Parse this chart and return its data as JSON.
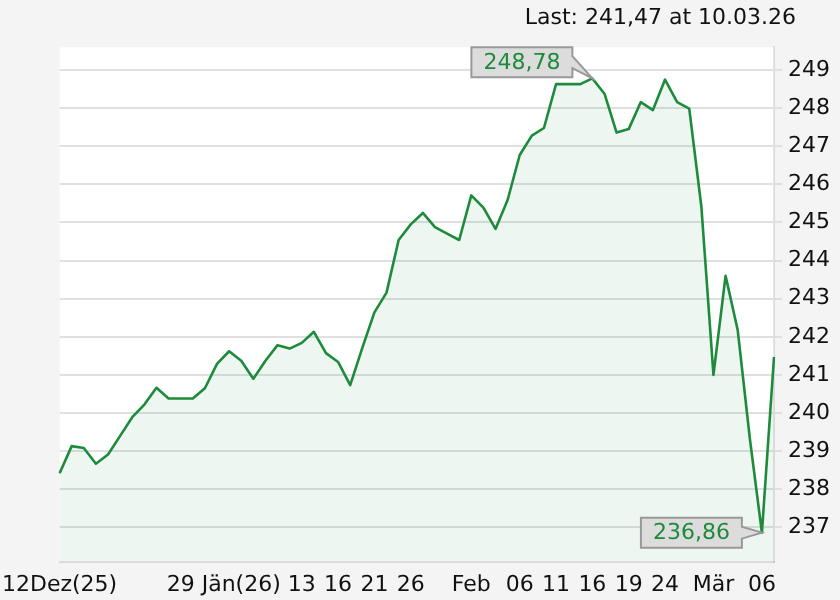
{
  "chart_data": {
    "type": "area",
    "title": "Last: 241,47 at 10.03.26",
    "categories": [
      "12Dez(25)",
      null,
      null,
      null,
      null,
      null,
      null,
      null,
      null,
      null,
      "29",
      null,
      null,
      null,
      null,
      "Jän(26)",
      null,
      null,
      null,
      null,
      "13",
      null,
      null,
      "16",
      null,
      null,
      "21",
      null,
      null,
      "26",
      null,
      null,
      null,
      null,
      "Feb",
      null,
      null,
      null,
      "06",
      null,
      null,
      "11",
      null,
      null,
      "16",
      null,
      null,
      "19",
      null,
      null,
      "24",
      null,
      null,
      null,
      "Mär",
      null,
      null,
      null,
      "06",
      null
    ],
    "series": [
      {
        "color": "#1e8a3c",
        "values": [
          238.42,
          239.13,
          239.08,
          238.67,
          238.91,
          239.4,
          239.89,
          240.22,
          240.66,
          240.38,
          240.38,
          240.38,
          240.65,
          241.29,
          241.62,
          241.37,
          240.9,
          241.37,
          241.78,
          241.69,
          241.84,
          242.13,
          241.57,
          241.34,
          240.73,
          241.71,
          242.64,
          243.16,
          244.54,
          244.95,
          245.25,
          244.88,
          244.71,
          244.54,
          245.71,
          245.39,
          244.83,
          245.59,
          246.77,
          247.28,
          247.48,
          248.63,
          248.63,
          248.63,
          248.78,
          248.38,
          247.36,
          247.45,
          248.16,
          247.95,
          248.75,
          248.16,
          247.99,
          245.42,
          241.0,
          243.6,
          242.18,
          239.34,
          236.86,
          241.47
        ]
      }
    ],
    "ylim": [
      236.1,
      249.6
    ],
    "yticks": [
      237,
      238,
      239,
      240,
      241,
      242,
      243,
      244,
      245,
      246,
      247,
      248,
      249
    ],
    "grid": "y",
    "legend": false,
    "marker": "none",
    "annotations": [
      "248,78",
      "236,86"
    ]
  }
}
